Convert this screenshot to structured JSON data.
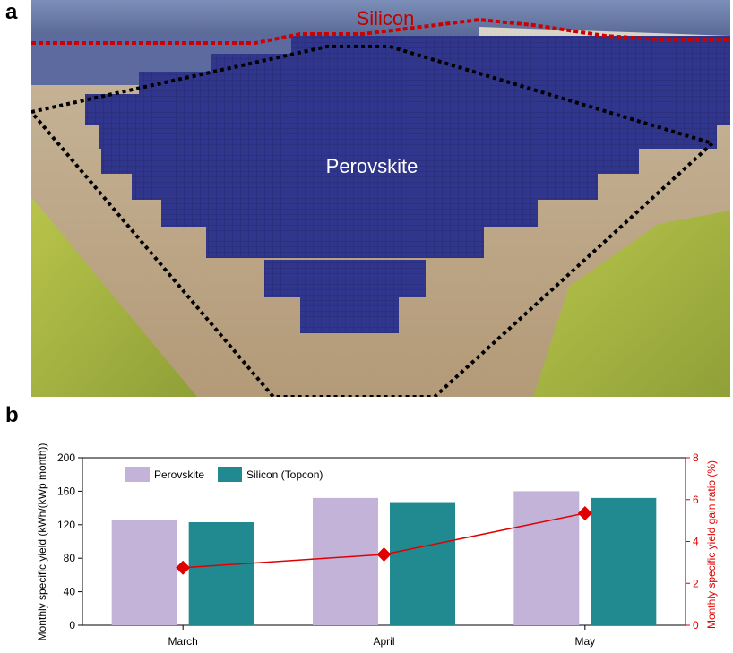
{
  "figure": {
    "panel_a_letter": "a",
    "panel_b_letter": "b"
  },
  "photo": {
    "label_silicon": "Silicon",
    "label_perovskite": "Perovskite",
    "colors": {
      "silicon_label": "#c00000",
      "perovskite_label": "#ffffff",
      "dotted_border": "#000000",
      "silicon_border": "#cc0000"
    }
  },
  "chart_data": {
    "type": "bar",
    "categories": [
      "March",
      "April",
      "May"
    ],
    "series": [
      {
        "name": "Perovskite",
        "axis": "left",
        "values": [
          126,
          152,
          160
        ],
        "color": "#c3b3d9"
      },
      {
        "name": "Silicon (Topcon)",
        "axis": "left",
        "values": [
          123,
          147,
          152
        ],
        "color": "#218a90"
      }
    ],
    "line_series": {
      "axis": "right",
      "values": [
        2.75,
        3.38,
        5.35
      ],
      "color": "#e00000",
      "marker": "diamond"
    },
    "ylabel": "Monthly specific yield (kWh/(kWp month))",
    "y2label": "Monthly specific yield gain ratio (%)",
    "ylim": [
      0,
      200
    ],
    "y2lim": [
      0,
      8
    ],
    "yticks": [
      0,
      40,
      80,
      120,
      160,
      200
    ],
    "y2ticks": [
      0,
      2,
      4,
      6,
      8
    ],
    "legend_position": "top-left",
    "grid": false
  }
}
